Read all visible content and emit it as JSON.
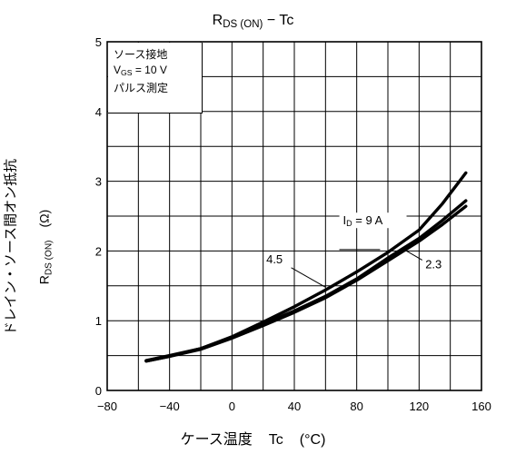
{
  "chart_data": {
    "type": "line",
    "title": {
      "main": "R",
      "sub": "DS (ON)",
      "rest": " − Tc"
    },
    "xlabel": {
      "text": "ケース温度",
      "var": "Tc",
      "unit": "(°C)"
    },
    "ylabel": {
      "line1": "ドレイン・ソース間オン抵抗",
      "line2_main": "R",
      "line2_sub": "DS (ON)",
      "line2_unit": "(Ω)"
    },
    "xlim": [
      -80,
      160
    ],
    "ylim": [
      0,
      5
    ],
    "x_ticks": [
      "−80",
      "−40",
      "0",
      "40",
      "80",
      "120",
      "160"
    ],
    "y_ticks": [
      "0",
      "1",
      "2",
      "3",
      "4",
      "5"
    ],
    "grid": true,
    "conditions": {
      "line1": "ソース接地",
      "line2_main": "V",
      "line2_sub": "GS",
      "line2_rest": " = 10 V",
      "line3": "パルス測定"
    },
    "annotation_id": {
      "main": "I",
      "sub": "D",
      "rest": " = 9 A"
    },
    "series": [
      {
        "label": "9",
        "x": [
          -55,
          -40,
          -20,
          0,
          20,
          40,
          60,
          80,
          100,
          120,
          135,
          150
        ],
        "y": [
          0.43,
          0.5,
          0.6,
          0.77,
          0.98,
          1.2,
          1.44,
          1.7,
          1.98,
          2.3,
          2.68,
          3.12
        ]
      },
      {
        "label": "4.5",
        "x": [
          -55,
          -40,
          -20,
          0,
          20,
          40,
          60,
          80,
          100,
          120,
          135,
          150
        ],
        "y": [
          0.42,
          0.49,
          0.6,
          0.76,
          0.95,
          1.14,
          1.35,
          1.6,
          1.9,
          2.18,
          2.44,
          2.72
        ]
      },
      {
        "label": "2.3",
        "x": [
          -55,
          -40,
          -20,
          0,
          20,
          40,
          60,
          80,
          100,
          120,
          135,
          150
        ],
        "y": [
          0.42,
          0.49,
          0.59,
          0.75,
          0.93,
          1.12,
          1.33,
          1.58,
          1.86,
          2.14,
          2.38,
          2.64
        ]
      }
    ],
    "label_4_5": "4.5",
    "label_2_3": "2.3"
  }
}
